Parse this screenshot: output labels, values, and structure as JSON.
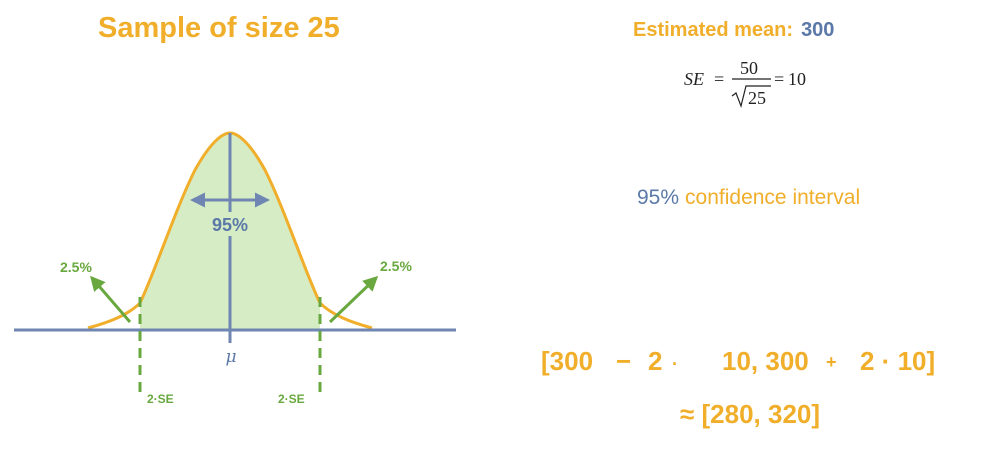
{
  "title": "Sample of size 25",
  "estimate": {
    "label": "Estimated mean:",
    "value": "300"
  },
  "se_formula": {
    "lhs": "SE",
    "numerator": "50",
    "radicand": "25",
    "result": "10"
  },
  "confidence": {
    "percent": "95%",
    "label": "confidence interval"
  },
  "diagram": {
    "center_label": "95%",
    "left_tail": "2.5%",
    "right_tail": "2.5%",
    "mu": "μ",
    "left_se": "2·SE",
    "right_se": "2·SE",
    "colors": {
      "curve": "#f0ae2a",
      "fill": "#d6ecc4",
      "axis": "#6f86b3",
      "green": "#69a83f"
    }
  },
  "calculation": {
    "open": "[300",
    "minus": "−",
    "two_a": "2",
    "dot_a": "·",
    "ten_a": "10, 300",
    "plus": "+",
    "two_b": "2 · 10]",
    "result": "≈ [280, 320]"
  }
}
